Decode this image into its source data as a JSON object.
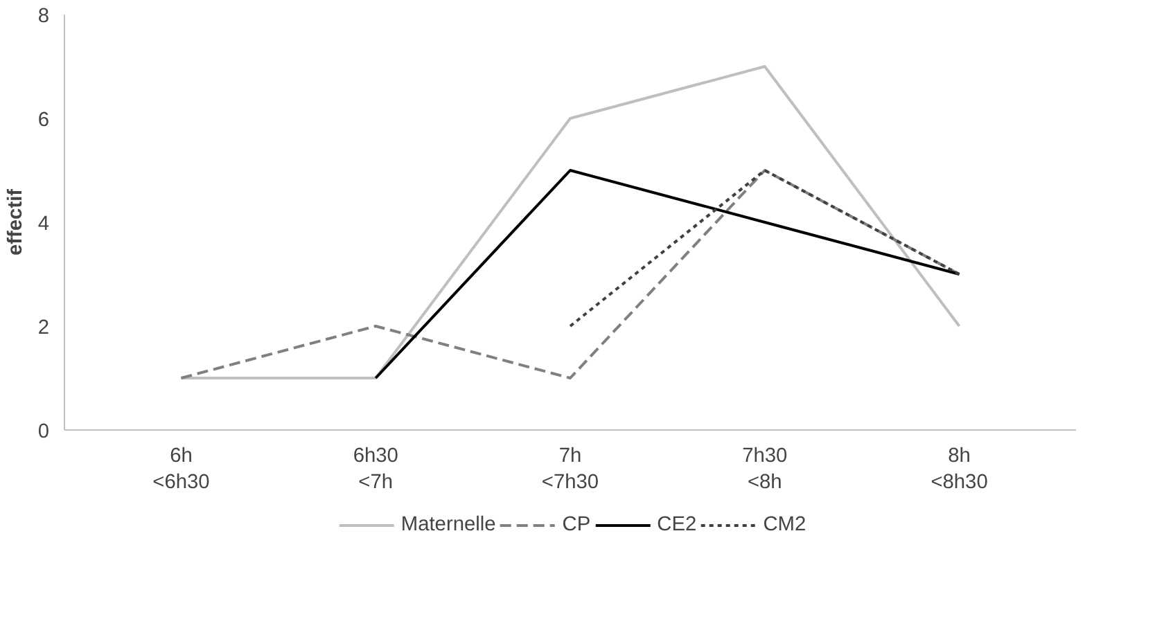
{
  "chart_data": {
    "type": "line",
    "ylabel": "effectif",
    "categories": [
      "6h\n<6h30",
      "6h30\n<7h",
      "7h\n<7h30",
      "7h30\n<8h",
      "8h\n<8h30"
    ],
    "series": [
      {
        "name": "Maternelle",
        "color": "#bfbfbf",
        "line_style": "solid",
        "values": [
          1,
          1,
          6,
          7,
          2
        ]
      },
      {
        "name": "CP",
        "color": "#808080",
        "line_style": "dashed",
        "values": [
          1,
          2,
          1,
          5,
          3
        ]
      },
      {
        "name": "CE2",
        "color": "#000000",
        "line_style": "solid",
        "values": [
          null,
          1,
          5,
          4,
          3
        ]
      },
      {
        "name": "CM2",
        "color": "#404040",
        "line_style": "dotted",
        "values": [
          null,
          null,
          2,
          5,
          3
        ]
      }
    ],
    "ylim": [
      0,
      8
    ],
    "yticks": [
      0,
      2,
      4,
      6,
      8
    ],
    "grid": false,
    "legend": "bottom",
    "marker": "none"
  }
}
